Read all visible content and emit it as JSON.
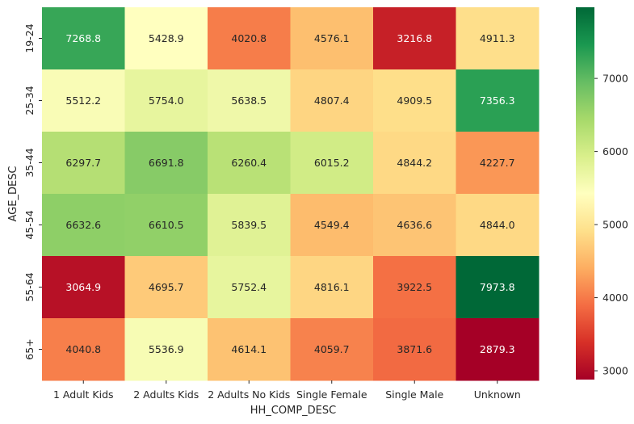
{
  "chart_data": {
    "type": "heatmap",
    "title": "",
    "xlabel": "HH_COMP_DESC",
    "ylabel": "AGE_DESC",
    "x_categories": [
      "1 Adult Kids",
      "2 Adults Kids",
      "2 Adults No Kids",
      "Single Female",
      "Single Male",
      "Unknown"
    ],
    "y_categories": [
      "19-24",
      "25-34",
      "35-44",
      "45-54",
      "55-64",
      "65+"
    ],
    "values": [
      [
        7268.8,
        5428.9,
        4020.8,
        4576.1,
        3216.8,
        4911.3
      ],
      [
        5512.2,
        5754.0,
        5638.5,
        4807.4,
        4909.5,
        7356.3
      ],
      [
        6297.7,
        6691.8,
        6260.4,
        6015.2,
        4844.2,
        4227.7
      ],
      [
        6632.6,
        6610.5,
        5839.5,
        4549.4,
        4636.6,
        4844.0
      ],
      [
        3064.9,
        4695.7,
        5752.4,
        4816.1,
        3922.5,
        7973.8
      ],
      [
        4040.8,
        5536.9,
        4614.1,
        4059.7,
        3871.6,
        2879.3
      ]
    ],
    "colormap": "RdYlGn",
    "colormap_stops": [
      "#a50026",
      "#d73027",
      "#f46d43",
      "#fdae61",
      "#fee08b",
      "#ffffbf",
      "#d9ef8b",
      "#a6d96a",
      "#66bd63",
      "#1a9850",
      "#006837"
    ],
    "vmin": 2879.3,
    "vmax": 7973.8,
    "colorbar_ticks": [
      3000,
      4000,
      5000,
      6000,
      7000
    ],
    "annotation_format": "0.1f"
  }
}
